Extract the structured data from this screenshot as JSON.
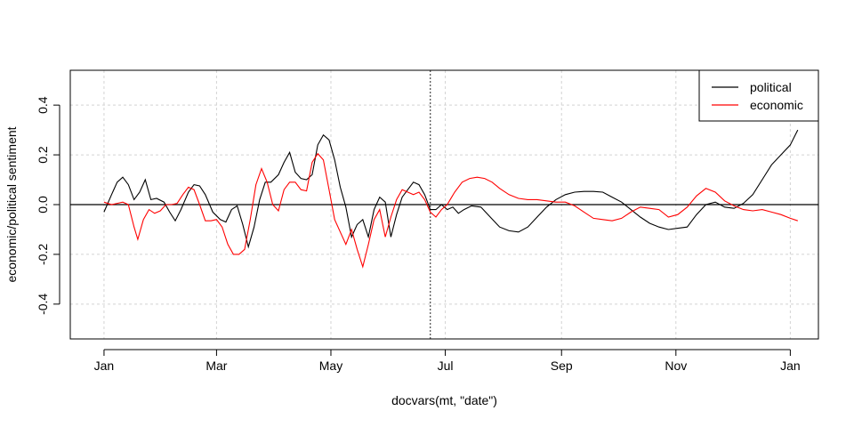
{
  "chart_data": {
    "type": "line",
    "title": "",
    "xlabel": "docvars(mt, \"date\")",
    "ylabel": "economic/political sentiment",
    "x_ticks": [
      "Jan",
      "Mar",
      "May",
      "Jul",
      "Sep",
      "Nov",
      "Jan"
    ],
    "x_tick_dates": [
      "2016-01-01",
      "2016-03-01",
      "2016-05-01",
      "2016-07-01",
      "2016-09-01",
      "2016-11-01",
      "2017-01-01"
    ],
    "y_ticks": [
      "-0.4",
      "-0.2",
      "0.0",
      "0.2",
      "0.4"
    ],
    "ylim": [
      -0.54,
      0.54
    ],
    "xlim": [
      "2015-12-14",
      "2017-01-16"
    ],
    "grid": true,
    "legend_position": "top-right",
    "hline_y": 0,
    "vline_date": "2016-06-23",
    "series": [
      {
        "name": "political",
        "color": "#000000",
        "points": [
          [
            "2016-01-01",
            -0.03
          ],
          [
            "2016-01-05",
            0.04
          ],
          [
            "2016-01-08",
            0.09
          ],
          [
            "2016-01-11",
            0.11
          ],
          [
            "2016-01-14",
            0.08
          ],
          [
            "2016-01-17",
            0.02
          ],
          [
            "2016-01-20",
            0.05
          ],
          [
            "2016-01-23",
            0.1
          ],
          [
            "2016-01-26",
            0.02
          ],
          [
            "2016-01-29",
            0.025
          ],
          [
            "2016-02-02",
            0.01
          ],
          [
            "2016-02-05",
            -0.03
          ],
          [
            "2016-02-08",
            -0.065
          ],
          [
            "2016-02-11",
            -0.02
          ],
          [
            "2016-02-15",
            0.05
          ],
          [
            "2016-02-18",
            0.08
          ],
          [
            "2016-02-21",
            0.075
          ],
          [
            "2016-02-24",
            0.04
          ],
          [
            "2016-02-28",
            -0.03
          ],
          [
            "2016-03-03",
            -0.06
          ],
          [
            "2016-03-06",
            -0.07
          ],
          [
            "2016-03-09",
            -0.02
          ],
          [
            "2016-03-12",
            -0.005
          ],
          [
            "2016-03-15",
            -0.08
          ],
          [
            "2016-03-18",
            -0.17
          ],
          [
            "2016-03-21",
            -0.09
          ],
          [
            "2016-03-24",
            0.02
          ],
          [
            "2016-03-27",
            0.09
          ],
          [
            "2016-03-30",
            0.09
          ],
          [
            "2016-04-03",
            0.12
          ],
          [
            "2016-04-06",
            0.17
          ],
          [
            "2016-04-09",
            0.21
          ],
          [
            "2016-04-12",
            0.13
          ],
          [
            "2016-04-15",
            0.105
          ],
          [
            "2016-04-18",
            0.1
          ],
          [
            "2016-04-21",
            0.12
          ],
          [
            "2016-04-24",
            0.24
          ],
          [
            "2016-04-27",
            0.28
          ],
          [
            "2016-04-30",
            0.26
          ],
          [
            "2016-05-03",
            0.18
          ],
          [
            "2016-05-06",
            0.07
          ],
          [
            "2016-05-09",
            -0.01
          ],
          [
            "2016-05-12",
            -0.13
          ],
          [
            "2016-05-15",
            -0.08
          ],
          [
            "2016-05-18",
            -0.06
          ],
          [
            "2016-05-21",
            -0.13
          ],
          [
            "2016-05-24",
            -0.02
          ],
          [
            "2016-05-27",
            0.03
          ],
          [
            "2016-05-30",
            0.01
          ],
          [
            "2016-06-02",
            -0.13
          ],
          [
            "2016-06-05",
            -0.04
          ],
          [
            "2016-06-08",
            0.03
          ],
          [
            "2016-06-11",
            0.06
          ],
          [
            "2016-06-14",
            0.09
          ],
          [
            "2016-06-17",
            0.08
          ],
          [
            "2016-06-20",
            0.04
          ],
          [
            "2016-06-23",
            -0.02
          ],
          [
            "2016-06-26",
            -0.02
          ],
          [
            "2016-06-29",
            0.0
          ],
          [
            "2016-07-02",
            -0.02
          ],
          [
            "2016-07-05",
            -0.01
          ],
          [
            "2016-07-08",
            -0.035
          ],
          [
            "2016-07-11",
            -0.02
          ],
          [
            "2016-07-15",
            -0.005
          ],
          [
            "2016-07-20",
            -0.01
          ],
          [
            "2016-07-25",
            -0.05
          ],
          [
            "2016-07-30",
            -0.09
          ],
          [
            "2016-08-04",
            -0.105
          ],
          [
            "2016-08-09",
            -0.11
          ],
          [
            "2016-08-14",
            -0.09
          ],
          [
            "2016-08-19",
            -0.05
          ],
          [
            "2016-08-24",
            -0.01
          ],
          [
            "2016-08-29",
            0.02
          ],
          [
            "2016-09-03",
            0.04
          ],
          [
            "2016-09-08",
            0.05
          ],
          [
            "2016-09-13",
            0.053
          ],
          [
            "2016-09-18",
            0.053
          ],
          [
            "2016-09-23",
            0.05
          ],
          [
            "2016-09-28",
            0.03
          ],
          [
            "2016-10-03",
            0.01
          ],
          [
            "2016-10-08",
            -0.02
          ],
          [
            "2016-10-13",
            -0.05
          ],
          [
            "2016-10-18",
            -0.075
          ],
          [
            "2016-10-23",
            -0.09
          ],
          [
            "2016-10-28",
            -0.1
          ],
          [
            "2016-11-02",
            -0.095
          ],
          [
            "2016-11-07",
            -0.09
          ],
          [
            "2016-11-12",
            -0.04
          ],
          [
            "2016-11-17",
            0.0
          ],
          [
            "2016-11-22",
            0.01
          ],
          [
            "2016-11-27",
            -0.01
          ],
          [
            "2016-12-02",
            -0.015
          ],
          [
            "2016-12-07",
            0.005
          ],
          [
            "2016-12-12",
            0.04
          ],
          [
            "2016-12-17",
            0.1
          ],
          [
            "2016-12-22",
            0.16
          ],
          [
            "2016-12-27",
            0.2
          ],
          [
            "2017-01-01",
            0.24
          ],
          [
            "2017-01-05",
            0.3
          ]
        ]
      },
      {
        "name": "economic",
        "color": "#ff0000",
        "points": [
          [
            "2016-01-01",
            0.01
          ],
          [
            "2016-01-05",
            0.0
          ],
          [
            "2016-01-08",
            0.005
          ],
          [
            "2016-01-11",
            0.01
          ],
          [
            "2016-01-14",
            0.0
          ],
          [
            "2016-01-17",
            -0.09
          ],
          [
            "2016-01-19",
            -0.14
          ],
          [
            "2016-01-22",
            -0.06
          ],
          [
            "2016-01-25",
            -0.02
          ],
          [
            "2016-01-28",
            -0.035
          ],
          [
            "2016-01-31",
            -0.025
          ],
          [
            "2016-02-03",
            0.0
          ],
          [
            "2016-02-06",
            0.0
          ],
          [
            "2016-02-09",
            0.005
          ],
          [
            "2016-02-12",
            0.04
          ],
          [
            "2016-02-15",
            0.07
          ],
          [
            "2016-02-18",
            0.06
          ],
          [
            "2016-02-21",
            0.0
          ],
          [
            "2016-02-24",
            -0.065
          ],
          [
            "2016-02-27",
            -0.065
          ],
          [
            "2016-03-01",
            -0.06
          ],
          [
            "2016-03-04",
            -0.09
          ],
          [
            "2016-03-07",
            -0.16
          ],
          [
            "2016-03-10",
            -0.2
          ],
          [
            "2016-03-13",
            -0.2
          ],
          [
            "2016-03-16",
            -0.18
          ],
          [
            "2016-03-19",
            -0.06
          ],
          [
            "2016-03-22",
            0.08
          ],
          [
            "2016-03-25",
            0.145
          ],
          [
            "2016-03-28",
            0.09
          ],
          [
            "2016-03-31",
            0.0
          ],
          [
            "2016-04-03",
            -0.025
          ],
          [
            "2016-04-06",
            0.06
          ],
          [
            "2016-04-09",
            0.09
          ],
          [
            "2016-04-12",
            0.09
          ],
          [
            "2016-04-15",
            0.06
          ],
          [
            "2016-04-18",
            0.055
          ],
          [
            "2016-04-21",
            0.17
          ],
          [
            "2016-04-24",
            0.205
          ],
          [
            "2016-04-27",
            0.18
          ],
          [
            "2016-04-30",
            0.06
          ],
          [
            "2016-05-03",
            -0.06
          ],
          [
            "2016-05-06",
            -0.11
          ],
          [
            "2016-05-09",
            -0.16
          ],
          [
            "2016-05-12",
            -0.1
          ],
          [
            "2016-05-15",
            -0.18
          ],
          [
            "2016-05-18",
            -0.25
          ],
          [
            "2016-05-21",
            -0.16
          ],
          [
            "2016-05-24",
            -0.06
          ],
          [
            "2016-05-27",
            -0.02
          ],
          [
            "2016-05-30",
            -0.13
          ],
          [
            "2016-06-02",
            -0.05
          ],
          [
            "2016-06-05",
            0.02
          ],
          [
            "2016-06-08",
            0.06
          ],
          [
            "2016-06-11",
            0.05
          ],
          [
            "2016-06-14",
            0.04
          ],
          [
            "2016-06-17",
            0.05
          ],
          [
            "2016-06-20",
            0.02
          ],
          [
            "2016-06-23",
            -0.03
          ],
          [
            "2016-06-26",
            -0.05
          ],
          [
            "2016-06-29",
            -0.02
          ],
          [
            "2016-07-02",
            0.0
          ],
          [
            "2016-07-06",
            0.05
          ],
          [
            "2016-07-10",
            0.09
          ],
          [
            "2016-07-14",
            0.105
          ],
          [
            "2016-07-18",
            0.11
          ],
          [
            "2016-07-22",
            0.105
          ],
          [
            "2016-07-26",
            0.09
          ],
          [
            "2016-07-30",
            0.065
          ],
          [
            "2016-08-04",
            0.04
          ],
          [
            "2016-08-09",
            0.025
          ],
          [
            "2016-08-14",
            0.02
          ],
          [
            "2016-08-19",
            0.02
          ],
          [
            "2016-08-24",
            0.015
          ],
          [
            "2016-08-29",
            0.01
          ],
          [
            "2016-09-03",
            0.01
          ],
          [
            "2016-09-08",
            -0.005
          ],
          [
            "2016-09-13",
            -0.03
          ],
          [
            "2016-09-18",
            -0.055
          ],
          [
            "2016-09-23",
            -0.06
          ],
          [
            "2016-09-28",
            -0.065
          ],
          [
            "2016-10-03",
            -0.055
          ],
          [
            "2016-10-08",
            -0.03
          ],
          [
            "2016-10-13",
            -0.01
          ],
          [
            "2016-10-18",
            -0.015
          ],
          [
            "2016-10-23",
            -0.02
          ],
          [
            "2016-10-28",
            -0.05
          ],
          [
            "2016-11-02",
            -0.04
          ],
          [
            "2016-11-07",
            -0.01
          ],
          [
            "2016-11-12",
            0.035
          ],
          [
            "2016-11-17",
            0.065
          ],
          [
            "2016-11-22",
            0.05
          ],
          [
            "2016-11-27",
            0.015
          ],
          [
            "2016-12-02",
            -0.005
          ],
          [
            "2016-12-07",
            -0.02
          ],
          [
            "2016-12-12",
            -0.025
          ],
          [
            "2016-12-17",
            -0.02
          ],
          [
            "2016-12-22",
            -0.03
          ],
          [
            "2016-12-27",
            -0.04
          ],
          [
            "2017-01-01",
            -0.055
          ],
          [
            "2017-01-05",
            -0.065
          ]
        ]
      }
    ]
  }
}
